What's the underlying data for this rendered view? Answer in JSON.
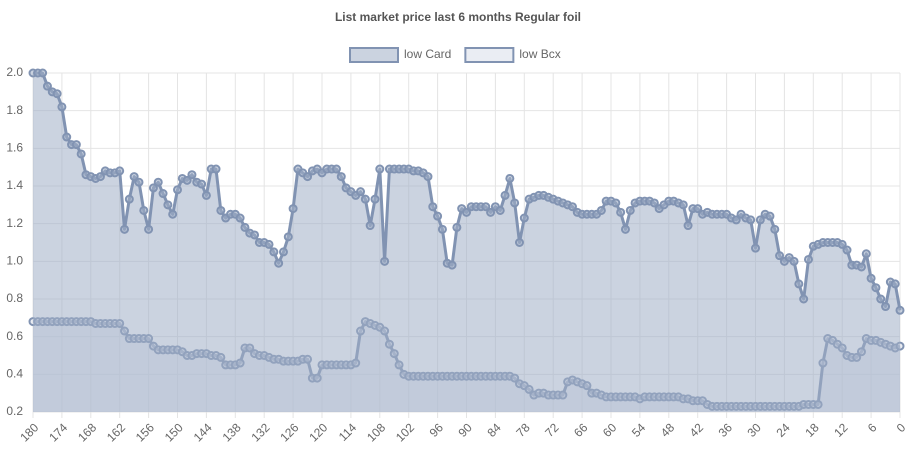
{
  "chart_data": {
    "type": "line",
    "title": "List market price last 6 months Regular foil",
    "x": [
      180,
      179,
      178,
      177,
      176,
      175,
      174,
      173,
      172,
      171,
      170,
      169,
      168,
      167,
      166,
      165,
      164,
      163,
      162,
      161,
      160,
      159,
      158,
      157,
      156,
      155,
      154,
      153,
      152,
      151,
      150,
      149,
      148,
      147,
      146,
      145,
      144,
      143,
      142,
      141,
      140,
      139,
      138,
      137,
      136,
      135,
      134,
      133,
      132,
      131,
      130,
      129,
      128,
      127,
      126,
      125,
      124,
      123,
      122,
      121,
      120,
      119,
      118,
      117,
      116,
      115,
      114,
      113,
      112,
      111,
      110,
      109,
      108,
      107,
      106,
      105,
      104,
      103,
      102,
      101,
      100,
      99,
      98,
      97,
      96,
      95,
      94,
      93,
      92,
      91,
      90,
      89,
      88,
      87,
      86,
      85,
      84,
      83,
      82,
      81,
      80,
      79,
      78,
      77,
      76,
      75,
      74,
      73,
      72,
      71,
      70,
      69,
      68,
      67,
      66,
      65,
      64,
      63,
      62,
      61,
      60,
      59,
      58,
      57,
      56,
      55,
      54,
      53,
      52,
      51,
      50,
      49,
      48,
      47,
      46,
      45,
      44,
      43,
      42,
      41,
      40,
      39,
      38,
      37,
      36,
      35,
      34,
      33,
      32,
      31,
      30,
      29,
      28,
      27,
      26,
      25,
      24,
      23,
      22,
      21,
      20,
      19,
      18,
      17,
      16,
      15,
      14,
      13,
      12,
      11,
      10,
      9,
      8,
      7,
      6,
      5,
      4,
      3,
      2,
      1,
      0
    ],
    "series": [
      {
        "name": "low Card",
        "color": "#8193b2",
        "fill": "rgba(160,174,198,0.55)",
        "values": [
          2.0,
          2.0,
          2.0,
          1.93,
          1.9,
          1.89,
          1.82,
          1.66,
          1.62,
          1.62,
          1.57,
          1.46,
          1.45,
          1.44,
          1.45,
          1.48,
          1.47,
          1.47,
          1.48,
          1.17,
          1.33,
          1.45,
          1.42,
          1.27,
          1.17,
          1.39,
          1.42,
          1.36,
          1.3,
          1.25,
          1.38,
          1.44,
          1.43,
          1.46,
          1.42,
          1.41,
          1.35,
          1.49,
          1.49,
          1.27,
          1.23,
          1.25,
          1.25,
          1.23,
          1.18,
          1.15,
          1.14,
          1.1,
          1.1,
          1.09,
          1.05,
          0.99,
          1.05,
          1.13,
          1.28,
          1.49,
          1.47,
          1.45,
          1.48,
          1.49,
          1.47,
          1.49,
          1.49,
          1.49,
          1.45,
          1.39,
          1.37,
          1.35,
          1.37,
          1.33,
          1.19,
          1.33,
          1.49,
          1.0,
          1.49,
          1.49,
          1.49,
          1.49,
          1.49,
          1.48,
          1.48,
          1.47,
          1.45,
          1.29,
          1.24,
          1.17,
          0.99,
          0.98,
          1.18,
          1.28,
          1.26,
          1.29,
          1.29,
          1.29,
          1.29,
          1.26,
          1.29,
          1.27,
          1.35,
          1.44,
          1.31,
          1.1,
          1.23,
          1.33,
          1.34,
          1.35,
          1.35,
          1.34,
          1.33,
          1.32,
          1.31,
          1.3,
          1.29,
          1.26,
          1.25,
          1.25,
          1.25,
          1.25,
          1.27,
          1.32,
          1.32,
          1.31,
          1.26,
          1.17,
          1.27,
          1.31,
          1.32,
          1.32,
          1.32,
          1.31,
          1.28,
          1.3,
          1.32,
          1.32,
          1.31,
          1.3,
          1.19,
          1.28,
          1.28,
          1.25,
          1.26,
          1.25,
          1.25,
          1.25,
          1.25,
          1.23,
          1.22,
          1.25,
          1.23,
          1.22,
          1.07,
          1.22,
          1.25,
          1.24,
          1.17,
          1.03,
          1.0,
          1.02,
          1.0,
          0.88,
          0.8,
          1.01,
          1.08,
          1.09,
          1.1,
          1.1,
          1.1,
          1.1,
          1.09,
          1.06,
          0.98,
          0.98,
          0.97,
          1.04,
          0.91,
          0.86,
          0.8,
          0.76,
          0.89,
          0.88,
          0.74
        ]
      },
      {
        "name": "low Bcx",
        "color": "#8193b2",
        "fill": "rgba(214,220,232,0.5)",
        "values": [
          0.68,
          0.68,
          0.68,
          0.68,
          0.68,
          0.68,
          0.68,
          0.68,
          0.68,
          0.68,
          0.68,
          0.68,
          0.68,
          0.67,
          0.67,
          0.67,
          0.67,
          0.67,
          0.67,
          0.63,
          0.59,
          0.59,
          0.59,
          0.59,
          0.59,
          0.55,
          0.53,
          0.53,
          0.53,
          0.53,
          0.53,
          0.52,
          0.5,
          0.5,
          0.51,
          0.51,
          0.51,
          0.5,
          0.5,
          0.49,
          0.45,
          0.45,
          0.45,
          0.46,
          0.54,
          0.54,
          0.51,
          0.5,
          0.5,
          0.49,
          0.48,
          0.48,
          0.47,
          0.47,
          0.47,
          0.47,
          0.48,
          0.48,
          0.38,
          0.38,
          0.45,
          0.45,
          0.45,
          0.45,
          0.45,
          0.45,
          0.45,
          0.46,
          0.63,
          0.68,
          0.67,
          0.66,
          0.65,
          0.63,
          0.56,
          0.51,
          0.45,
          0.4,
          0.39,
          0.39,
          0.39,
          0.39,
          0.39,
          0.39,
          0.39,
          0.39,
          0.39,
          0.39,
          0.39,
          0.39,
          0.39,
          0.39,
          0.39,
          0.39,
          0.39,
          0.39,
          0.39,
          0.39,
          0.39,
          0.39,
          0.38,
          0.35,
          0.34,
          0.32,
          0.29,
          0.3,
          0.3,
          0.29,
          0.29,
          0.29,
          0.29,
          0.36,
          0.37,
          0.36,
          0.35,
          0.34,
          0.3,
          0.3,
          0.29,
          0.28,
          0.28,
          0.28,
          0.28,
          0.28,
          0.28,
          0.28,
          0.27,
          0.28,
          0.28,
          0.28,
          0.28,
          0.28,
          0.28,
          0.28,
          0.28,
          0.27,
          0.27,
          0.26,
          0.26,
          0.26,
          0.24,
          0.23,
          0.23,
          0.23,
          0.23,
          0.23,
          0.23,
          0.23,
          0.23,
          0.23,
          0.23,
          0.23,
          0.23,
          0.23,
          0.23,
          0.23,
          0.23,
          0.23,
          0.23,
          0.23,
          0.24,
          0.24,
          0.24,
          0.24,
          0.46,
          0.59,
          0.58,
          0.56,
          0.54,
          0.5,
          0.49,
          0.49,
          0.52,
          0.59,
          0.58,
          0.58,
          0.57,
          0.56,
          0.55,
          0.54,
          0.55
        ]
      }
    ],
    "xlim": [
      180,
      0
    ],
    "xticks": [
      180,
      174,
      168,
      162,
      156,
      150,
      144,
      138,
      132,
      126,
      120,
      114,
      108,
      102,
      96,
      90,
      84,
      78,
      72,
      66,
      60,
      54,
      48,
      42,
      36,
      30,
      24,
      18,
      12,
      6,
      0
    ],
    "ylim": [
      0.2,
      2.0
    ],
    "yticks": [
      0.2,
      0.4,
      0.6,
      0.8,
      {
        "value": 1,
        "label": "1.0"
      },
      1.2,
      1.4,
      1.6,
      1.8,
      {
        "value": 2,
        "label": "2.0"
      }
    ],
    "grid": true,
    "legend": "top"
  }
}
